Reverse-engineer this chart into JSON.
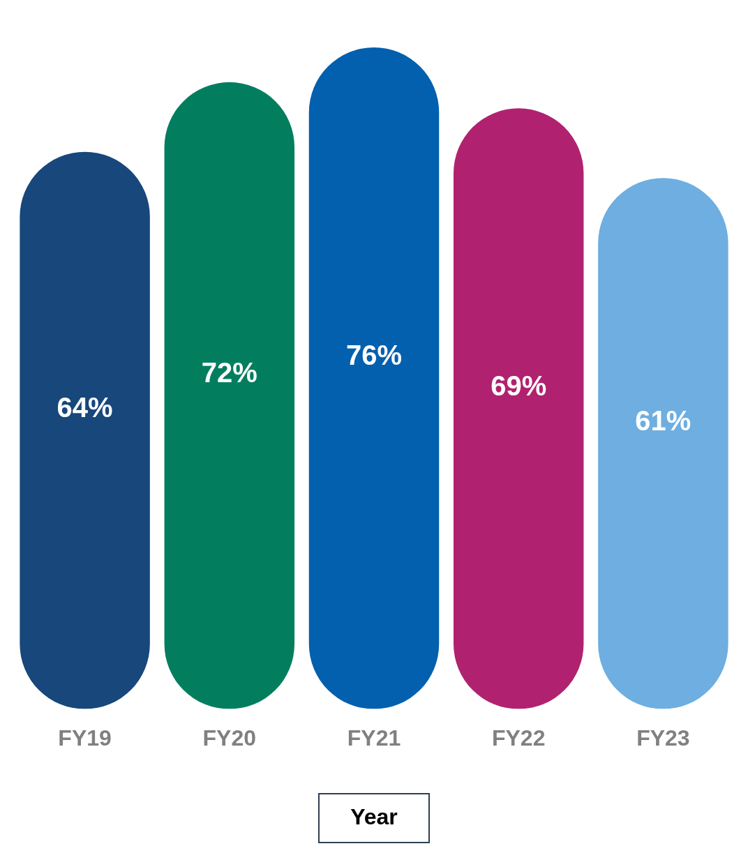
{
  "chart_data": {
    "type": "bar",
    "xlabel": "Year",
    "categories": [
      "FY19",
      "FY20",
      "FY21",
      "FY22",
      "FY23"
    ],
    "values": [
      64,
      72,
      76,
      69,
      61
    ],
    "colors": [
      "#17477b",
      "#027e5f",
      "#0260ae",
      "#b0226f",
      "#6eaee0"
    ],
    "value_labels": [
      "64%",
      "72%",
      "76%",
      "69%",
      "61%"
    ],
    "grid": false,
    "legend": false
  }
}
